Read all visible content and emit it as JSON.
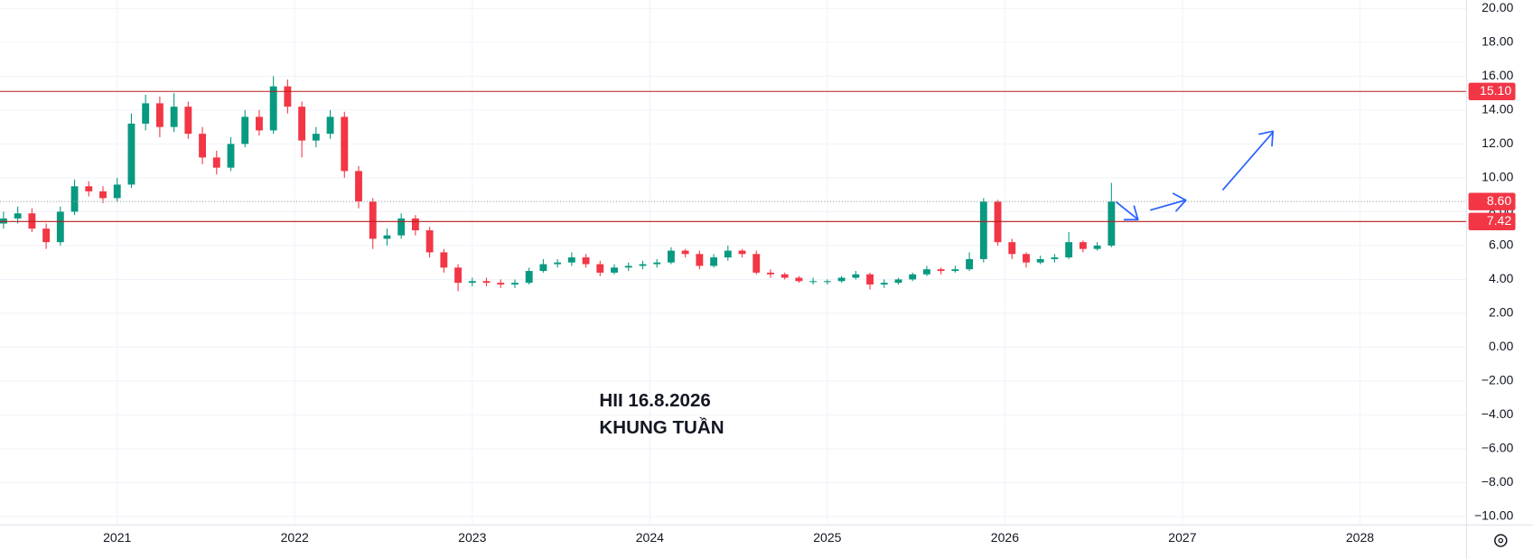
{
  "chart_data": {
    "type": "candlestick",
    "annotations": [
      "HII 16.8.2026",
      "KHUNG TUẦN"
    ],
    "annotation_color": "#d32f2f",
    "up_color": "#089981",
    "down_color": "#f23645",
    "x": [
      2020.36,
      2020.44,
      2020.52,
      2020.6,
      2020.68,
      2020.76,
      2020.84,
      2020.92,
      2021.0,
      2021.08,
      2021.16,
      2021.24,
      2021.32,
      2021.4,
      2021.48,
      2021.56,
      2021.64,
      2021.72,
      2021.8,
      2021.88,
      2021.96,
      2022.04,
      2022.12,
      2022.2,
      2022.28,
      2022.36,
      2022.44,
      2022.52,
      2022.6,
      2022.68,
      2022.76,
      2022.84,
      2022.92,
      2023.0,
      2023.08,
      2023.16,
      2023.24,
      2023.32,
      2023.4,
      2023.48,
      2023.56,
      2023.64,
      2023.72,
      2023.8,
      2023.88,
      2023.96,
      2024.04,
      2024.12,
      2024.2,
      2024.28,
      2024.36,
      2024.44,
      2024.52,
      2024.6,
      2024.68,
      2024.76,
      2024.84,
      2024.92,
      2025.0,
      2025.08,
      2025.16,
      2025.24,
      2025.32,
      2025.4,
      2025.48,
      2025.56,
      2025.64,
      2025.72,
      2025.8,
      2025.88,
      2025.96,
      2026.04,
      2026.12,
      2026.2,
      2026.28,
      2026.36,
      2026.44,
      2026.52,
      2026.6
    ],
    "open": [
      7.3,
      7.6,
      7.9,
      7.0,
      6.2,
      8.0,
      9.5,
      9.2,
      8.8,
      9.6,
      13.2,
      14.4,
      13.0,
      14.2,
      12.6,
      11.2,
      10.6,
      12.0,
      13.6,
      12.8,
      15.4,
      14.2,
      12.2,
      12.6,
      13.6,
      10.4,
      8.6,
      6.4,
      6.6,
      7.6,
      6.9,
      5.6,
      4.7,
      3.8,
      3.9,
      3.8,
      3.7,
      3.8,
      4.5,
      4.9,
      5.0,
      5.3,
      4.9,
      4.4,
      4.7,
      4.8,
      4.9,
      5.0,
      5.7,
      5.5,
      4.8,
      5.3,
      5.7,
      5.5,
      4.4,
      4.3,
      4.1,
      3.9,
      3.9,
      3.9,
      4.1,
      4.3,
      3.7,
      3.8,
      4.0,
      4.3,
      4.6,
      4.5,
      4.6,
      5.2,
      8.6,
      6.2,
      5.5,
      5.0,
      5.2,
      5.3,
      6.2,
      5.8,
      6.0
    ],
    "high": [
      8.0,
      8.3,
      8.2,
      7.3,
      8.3,
      9.9,
      9.8,
      9.5,
      10.0,
      13.8,
      14.9,
      14.8,
      15.0,
      14.5,
      13.0,
      11.6,
      12.4,
      14.0,
      14.0,
      16.0,
      15.8,
      14.5,
      13.0,
      14.0,
      13.9,
      10.7,
      8.8,
      7.0,
      7.9,
      7.8,
      7.1,
      5.8,
      4.9,
      4.1,
      4.1,
      4.0,
      4.0,
      4.7,
      5.2,
      5.2,
      5.6,
      5.5,
      5.1,
      4.9,
      5.0,
      5.1,
      5.2,
      5.9,
      5.8,
      5.7,
      5.5,
      6.0,
      5.8,
      5.7,
      4.6,
      4.4,
      4.2,
      4.1,
      4.0,
      4.2,
      4.5,
      4.4,
      4.0,
      4.1,
      4.4,
      4.8,
      4.7,
      4.8,
      5.6,
      8.8,
      8.7,
      6.4,
      5.6,
      5.4,
      5.5,
      6.8,
      6.3,
      6.2,
      9.7
    ],
    "low": [
      7.0,
      7.3,
      6.8,
      5.8,
      6.0,
      7.8,
      8.9,
      8.5,
      8.6,
      9.4,
      12.8,
      12.4,
      12.7,
      12.3,
      10.8,
      10.2,
      10.4,
      11.8,
      12.5,
      12.6,
      13.8,
      11.2,
      11.8,
      12.3,
      10.0,
      8.2,
      5.8,
      6.0,
      6.4,
      6.6,
      5.3,
      4.4,
      3.3,
      3.6,
      3.6,
      3.5,
      3.5,
      3.7,
      4.4,
      4.7,
      4.8,
      4.7,
      4.2,
      4.3,
      4.5,
      4.6,
      4.7,
      4.9,
      5.3,
      4.6,
      4.7,
      5.1,
      5.3,
      4.3,
      4.1,
      4.0,
      3.8,
      3.7,
      3.7,
      3.8,
      4.0,
      3.4,
      3.5,
      3.7,
      3.9,
      4.2,
      4.3,
      4.4,
      4.5,
      5.0,
      6.0,
      5.2,
      4.7,
      4.9,
      5.0,
      5.2,
      5.6,
      5.7,
      5.9
    ],
    "close": [
      7.6,
      7.9,
      7.0,
      6.2,
      8.0,
      9.5,
      9.2,
      8.8,
      9.6,
      13.2,
      14.4,
      13.0,
      14.2,
      12.6,
      11.2,
      10.6,
      12.0,
      13.6,
      12.8,
      15.4,
      14.2,
      12.2,
      12.6,
      13.6,
      10.4,
      8.6,
      6.4,
      6.6,
      7.6,
      6.9,
      5.6,
      4.7,
      3.8,
      3.9,
      3.8,
      3.7,
      3.8,
      4.5,
      4.9,
      5.0,
      5.3,
      4.9,
      4.4,
      4.7,
      4.8,
      4.9,
      5.0,
      5.7,
      5.5,
      4.8,
      5.3,
      5.7,
      5.5,
      4.4,
      4.3,
      4.1,
      3.9,
      3.9,
      3.9,
      4.1,
      4.3,
      3.7,
      3.8,
      4.0,
      4.3,
      4.6,
      4.5,
      4.6,
      5.2,
      8.6,
      6.2,
      5.5,
      5.0,
      5.2,
      5.3,
      6.2,
      5.8,
      6.0,
      8.6
    ],
    "xlim": [
      2020.34,
      2028.6
    ],
    "xticks": [
      2021,
      2022,
      2023,
      2024,
      2025,
      2026,
      2027,
      2028
    ],
    "ylim": [
      -10.5,
      20.5
    ],
    "yticks": [
      {
        "value": 20,
        "label": "20.00"
      },
      {
        "value": 18,
        "label": "18.00"
      },
      {
        "value": 16,
        "label": "16.00"
      },
      {
        "value": 14,
        "label": "14.00"
      },
      {
        "value": 12,
        "label": "12.00"
      },
      {
        "value": 10,
        "label": "10.00"
      },
      {
        "value": 8,
        "label": "8.00"
      },
      {
        "value": 6,
        "label": "6.00"
      },
      {
        "value": 4,
        "label": "4.00"
      },
      {
        "value": 2,
        "label": "2.00"
      },
      {
        "value": 0,
        "label": "0.00"
      },
      {
        "value": -2,
        "label": "−2.00"
      },
      {
        "value": -4,
        "label": "−4.00"
      },
      {
        "value": -6,
        "label": "−6.00"
      },
      {
        "value": -8,
        "label": "−8.00"
      },
      {
        "value": -10,
        "label": "−10.00"
      }
    ],
    "grid": true,
    "hlines": [
      {
        "value": 15.1,
        "label": "15.10",
        "color": "#b71c1c",
        "style": "solid"
      },
      {
        "value": 8.6,
        "label": "8.60",
        "color": "#9e9e9e",
        "style": "dotted"
      },
      {
        "value": 7.42,
        "label": "7.42",
        "color": "#b71c1c",
        "style": "solid"
      }
    ],
    "hline_label_color": "#f23645"
  }
}
